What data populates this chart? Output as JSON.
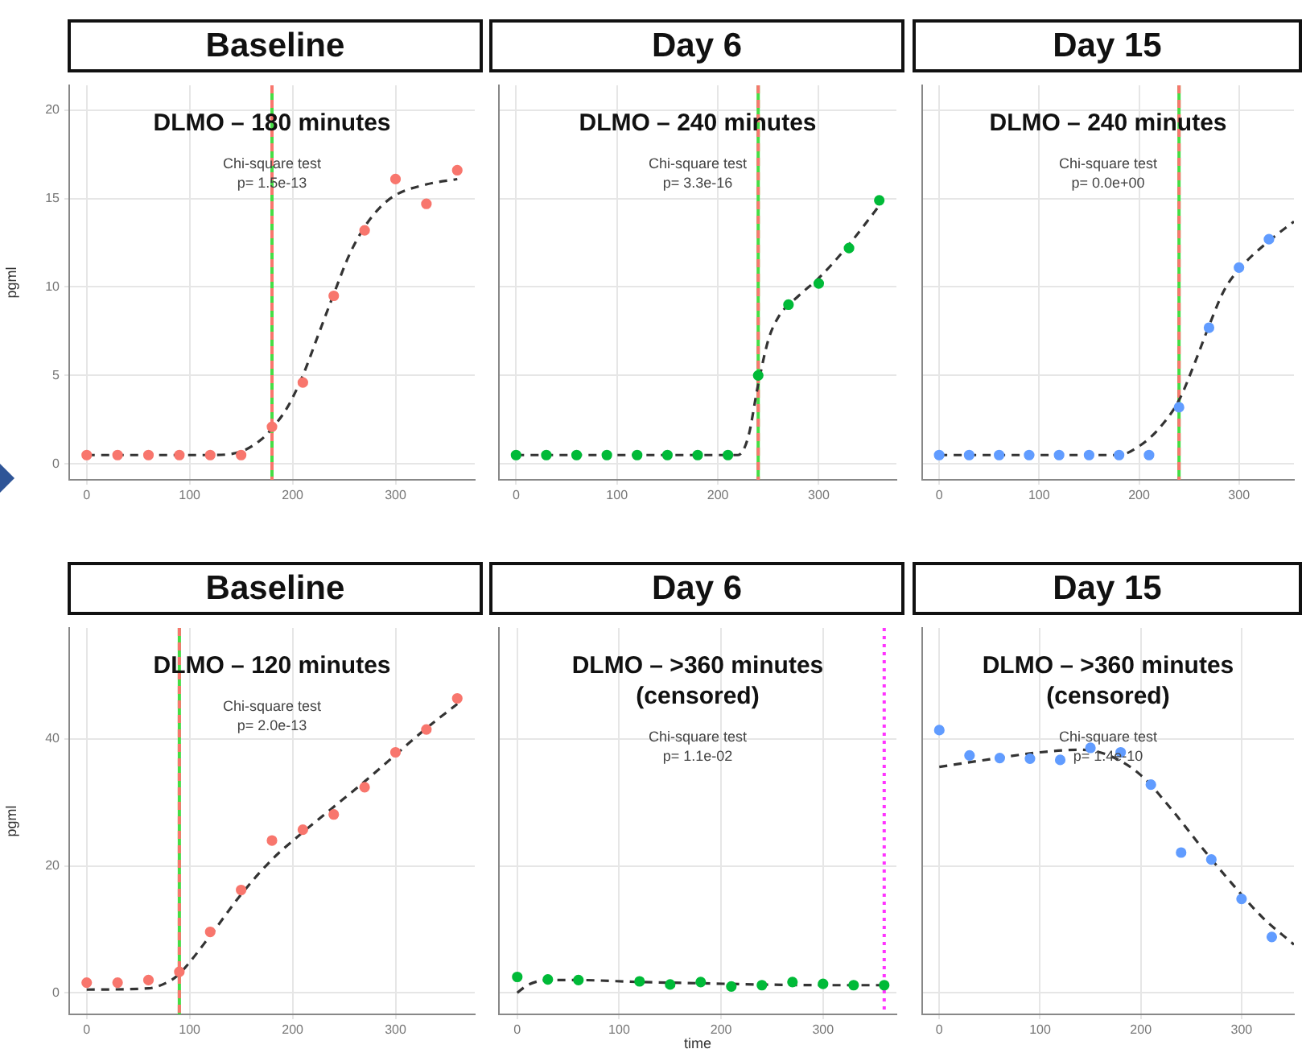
{
  "chart_data": [
    {
      "type": "scatter",
      "title": "Baseline",
      "subtitle": "DLMO – 180 minutes",
      "ylabel": "pgml",
      "annotations": [
        "Chi-square test\np= 1.5e-13"
      ],
      "grid": true,
      "xlim": [
        -17,
        377
      ],
      "xticks": [
        0,
        100,
        200,
        300
      ],
      "ylim": [
        -0.9,
        21.4
      ],
      "yticks": [
        0,
        5,
        10,
        15,
        20
      ],
      "series": [
        {
          "type": "scatter",
          "marker": "circle",
          "color": "#f8766d",
          "x": [
            0,
            30,
            60,
            90,
            120,
            150,
            180,
            210,
            240,
            270,
            300,
            330,
            360
          ],
          "values": [
            0.5,
            0.5,
            0.5,
            0.5,
            0.5,
            0.5,
            2.1,
            4.6,
            9.5,
            13.2,
            16.1,
            14.7,
            16.6
          ]
        },
        {
          "type": "line",
          "marker": "none",
          "color": "#333333",
          "line_style": "dashed",
          "x": [
            0,
            120,
            150,
            170,
            180,
            195,
            210,
            225,
            240,
            255,
            270,
            285,
            300,
            330,
            360
          ],
          "values": [
            0.5,
            0.5,
            0.7,
            1.4,
            2.0,
            3.2,
            5.0,
            7.3,
            9.6,
            11.8,
            13.4,
            14.5,
            15.2,
            15.8,
            16.1
          ]
        }
      ],
      "ref_lines": [
        {
          "axis": "x",
          "value": 180,
          "color": "#44dd44",
          "line_style": "solid"
        },
        {
          "axis": "x",
          "value": 180,
          "color": "#f8766d",
          "line_style": "dashed"
        }
      ]
    },
    {
      "type": "scatter",
      "title": "Day 6",
      "subtitle": "DLMO – 240 minutes",
      "annotations": [
        "Chi-square test\np= 3.3e-16"
      ],
      "grid": true,
      "tick_labels": "x",
      "xlim": [
        -17,
        377
      ],
      "xticks": [
        0,
        100,
        200,
        300
      ],
      "ylim": [
        -0.9,
        21.4
      ],
      "yticks": [
        0,
        5,
        10,
        15,
        20
      ],
      "series": [
        {
          "type": "scatter",
          "marker": "circle",
          "color": "#00ba38",
          "x": [
            0,
            30,
            60,
            90,
            120,
            150,
            180,
            210,
            240,
            270,
            300,
            330,
            360
          ],
          "values": [
            0.5,
            0.5,
            0.5,
            0.5,
            0.5,
            0.5,
            0.5,
            0.5,
            5.0,
            9.0,
            10.2,
            12.2,
            14.9
          ]
        },
        {
          "type": "line",
          "marker": "none",
          "color": "#333333",
          "line_style": "dashed",
          "x": [
            0,
            220,
            230,
            240,
            250,
            260,
            280,
            300,
            330,
            360
          ],
          "values": [
            0.5,
            0.5,
            1.5,
            4.5,
            7.0,
            8.3,
            9.5,
            10.5,
            12.4,
            14.6
          ]
        }
      ],
      "ref_lines": [
        {
          "axis": "x",
          "value": 240,
          "color": "#44dd44",
          "line_style": "solid"
        },
        {
          "axis": "x",
          "value": 240,
          "color": "#f8766d",
          "line_style": "dashed"
        }
      ]
    },
    {
      "type": "scatter",
      "title": "Day 15",
      "subtitle": "DLMO – 240 minutes",
      "annotations": [
        "Chi-square test\np= 0.0e+00"
      ],
      "grid": true,
      "tick_labels": "x",
      "xlim": [
        -17,
        355
      ],
      "xticks": [
        0,
        100,
        200,
        300
      ],
      "ylim": [
        -0.9,
        21.4
      ],
      "yticks": [
        0,
        5,
        10,
        15,
        20
      ],
      "series": [
        {
          "type": "scatter",
          "marker": "circle",
          "color": "#619cff",
          "x": [
            0,
            30,
            60,
            90,
            120,
            150,
            180,
            210,
            240,
            270,
            300,
            330
          ],
          "values": [
            0.5,
            0.5,
            0.5,
            0.5,
            0.5,
            0.5,
            0.5,
            0.5,
            3.2,
            7.7,
            11.1,
            12.7
          ]
        },
        {
          "type": "line",
          "marker": "none",
          "color": "#333333",
          "line_style": "dashed",
          "x": [
            0,
            180,
            200,
            220,
            240,
            255,
            270,
            285,
            300,
            330,
            355
          ],
          "values": [
            0.5,
            0.5,
            1.0,
            2.0,
            3.6,
            5.6,
            7.8,
            9.8,
            11.0,
            12.6,
            13.7
          ]
        }
      ],
      "ref_lines": [
        {
          "axis": "x",
          "value": 240,
          "color": "#44dd44",
          "line_style": "solid"
        },
        {
          "axis": "x",
          "value": 240,
          "color": "#f8766d",
          "line_style": "dashed"
        }
      ]
    },
    {
      "type": "scatter",
      "title": "Baseline",
      "subtitle": "DLMO – 120 minutes",
      "ylabel": "pgml",
      "annotations": [
        "Chi-square test\np= 2.0e-13"
      ],
      "grid": true,
      "xlim": [
        -17,
        377
      ],
      "xticks": [
        0,
        100,
        200,
        300
      ],
      "ylim": [
        -3.4,
        57.5
      ],
      "yticks": [
        0,
        20,
        40
      ],
      "series": [
        {
          "type": "scatter",
          "marker": "circle",
          "color": "#f8766d",
          "x": [
            0,
            30,
            60,
            90,
            120,
            150,
            180,
            210,
            240,
            270,
            300,
            330,
            360
          ],
          "values": [
            1.6,
            1.6,
            2.0,
            3.3,
            9.6,
            16.2,
            24.0,
            25.7,
            28.1,
            32.4,
            37.9,
            41.5,
            46.4
          ]
        },
        {
          "type": "line",
          "marker": "none",
          "color": "#333333",
          "line_style": "dashed",
          "x": [
            0,
            60,
            80,
            90,
            120,
            150,
            180,
            210,
            240,
            270,
            300,
            330,
            360
          ],
          "values": [
            0.5,
            0.7,
            1.8,
            3.0,
            9.0,
            15.5,
            21.0,
            25.3,
            29.3,
            33.3,
            37.5,
            41.7,
            45.5
          ]
        }
      ],
      "ref_lines": [
        {
          "axis": "x",
          "value": 90,
          "color": "#44dd44",
          "line_style": "solid"
        },
        {
          "axis": "x",
          "value": 90,
          "color": "#f8766d",
          "line_style": "dashed"
        }
      ]
    },
    {
      "type": "scatter",
      "title": "Day 6",
      "subtitle": "DLMO – >360 minutes\n(censored)",
      "xlabel": "time",
      "annotations": [
        "Chi-square test\np= 1.1e-02"
      ],
      "grid": true,
      "tick_labels": "x",
      "xlim": [
        -18,
        372
      ],
      "xticks": [
        0,
        100,
        200,
        300
      ],
      "ylim": [
        -3.4,
        57.5
      ],
      "yticks": [
        0,
        20,
        40
      ],
      "series": [
        {
          "type": "scatter",
          "marker": "circle",
          "color": "#00ba38",
          "x": [
            0,
            30,
            60,
            120,
            150,
            180,
            210,
            240,
            270,
            300,
            330,
            360
          ],
          "values": [
            2.5,
            2.1,
            2.0,
            1.8,
            1.3,
            1.7,
            1.0,
            1.2,
            1.7,
            1.4,
            1.2,
            1.2
          ]
        },
        {
          "type": "line",
          "marker": "none",
          "color": "#333333",
          "line_style": "dashed",
          "x": [
            0,
            10,
            30,
            60,
            120,
            180,
            240,
            300,
            360
          ],
          "values": [
            0,
            1.2,
            2.0,
            2.0,
            1.7,
            1.5,
            1.3,
            1.2,
            1.2
          ]
        }
      ],
      "ref_lines": [
        {
          "axis": "x",
          "value": 360,
          "color": "#ff33ff",
          "line_style": "dotted"
        }
      ]
    },
    {
      "type": "scatter",
      "title": "Day 15",
      "subtitle": "DLMO – >360 minutes\n(censored)",
      "annotations": [
        "Chi-square test\np= 1.4e-10"
      ],
      "grid": true,
      "tick_labels": "x",
      "xlim": [
        -17,
        352
      ],
      "xticks": [
        0,
        100,
        200,
        300
      ],
      "ylim": [
        -3.4,
        57.5
      ],
      "yticks": [
        0,
        20,
        40
      ],
      "series": [
        {
          "type": "scatter",
          "marker": "circle",
          "color": "#619cff",
          "x": [
            0,
            30,
            60,
            90,
            120,
            150,
            180,
            210,
            240,
            270,
            300,
            330
          ],
          "values": [
            41.4,
            37.4,
            37.0,
            36.9,
            36.7,
            38.6,
            37.9,
            32.8,
            22.1,
            21.0,
            14.8,
            8.8
          ]
        },
        {
          "type": "line",
          "marker": "none",
          "color": "#333333",
          "line_style": "dashed",
          "x": [
            0,
            50,
            100,
            140,
            170,
            200,
            230,
            260,
            290,
            320,
            352
          ],
          "values": [
            35.6,
            36.8,
            37.9,
            38.3,
            37.3,
            34.3,
            29.0,
            23.0,
            17.3,
            12.0,
            7.6
          ]
        }
      ]
    }
  ]
}
